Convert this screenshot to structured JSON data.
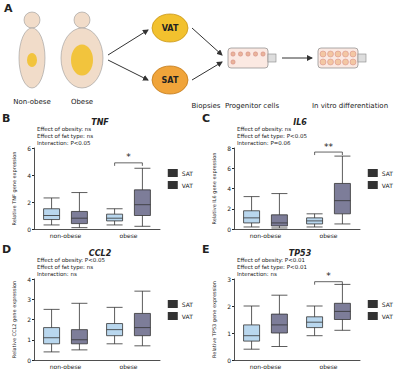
{
  "diagram": {
    "panel": "A",
    "bodies": [
      "Non-obese",
      "Obese"
    ],
    "depots": [
      "VAT",
      "SAT"
    ],
    "steps": [
      "Biopsies",
      "Progenitor cells",
      "In vitro differentiation"
    ]
  },
  "chart_data": [
    {
      "panel": "B",
      "type": "boxplot",
      "title": "TNF",
      "y_label": "Relative TNF gene expression",
      "annotations": [
        "Effect of obesity: ns",
        "Effect of fat type: ns",
        "Interaction: P<0.05"
      ],
      "categories": [
        "non-obese",
        "obese"
      ],
      "series": [
        {
          "name": "SAT",
          "color": "#b9d7ee",
          "values": [
            [
              0.3,
              0.7,
              1.0,
              1.5,
              2.3
            ],
            [
              0.3,
              0.6,
              0.8,
              1.1,
              1.5
            ]
          ]
        },
        {
          "name": "VAT",
          "color": "#7d7d99",
          "values": [
            [
              0.1,
              0.4,
              0.8,
              1.3,
              2.7
            ],
            [
              0.2,
              1.0,
              1.8,
              2.9,
              4.5
            ]
          ]
        }
      ],
      "significance": [
        {
          "category": "obese",
          "y": 4.9,
          "label": "*"
        }
      ],
      "ylim": [
        0,
        6
      ],
      "yticks": [
        0,
        2,
        4,
        6
      ],
      "grid": false,
      "legend": "right"
    },
    {
      "panel": "C",
      "type": "boxplot",
      "title": "IL6",
      "y_label": "Relative IL6 gene expression",
      "annotations": [
        "Effect of obesity: ns",
        "Effect of fat type: P<0.05",
        "Interaction: P=0.06"
      ],
      "categories": [
        "non-obese",
        "obese"
      ],
      "series": [
        {
          "name": "SAT",
          "color": "#b9d7ee",
          "values": [
            [
              0.2,
              0.6,
              1.1,
              1.8,
              3.2
            ],
            [
              0.2,
              0.5,
              0.8,
              1.1,
              1.5
            ]
          ]
        },
        {
          "name": "VAT",
          "color": "#7d7d99",
          "values": [
            [
              0.1,
              0.3,
              0.6,
              1.4,
              3.5
            ],
            [
              0.5,
              1.5,
              2.8,
              4.5,
              7.2
            ]
          ]
        }
      ],
      "significance": [
        {
          "category": "obese",
          "y": 7.6,
          "label": "**"
        }
      ],
      "ylim": [
        0,
        8
      ],
      "yticks": [
        0,
        2,
        4,
        6,
        8
      ],
      "grid": false,
      "legend": "right"
    },
    {
      "panel": "D",
      "type": "boxplot",
      "title": "CCL2",
      "y_label": "Relative CCL2 gene expression",
      "annotations": [
        "Effect of obesity: P<0.05",
        "Effect of fat type: ns",
        "Interaction: ns"
      ],
      "categories": [
        "non-obese",
        "obese"
      ],
      "series": [
        {
          "name": "SAT",
          "color": "#b9d7ee",
          "values": [
            [
              0.4,
              0.8,
              1.1,
              1.6,
              2.5
            ],
            [
              0.8,
              1.2,
              1.5,
              1.8,
              2.6
            ]
          ]
        },
        {
          "name": "VAT",
          "color": "#7d7d99",
          "values": [
            [
              0.5,
              0.8,
              1.0,
              1.5,
              2.8
            ],
            [
              0.7,
              1.2,
              1.6,
              2.3,
              3.4
            ]
          ]
        }
      ],
      "significance": [],
      "ylim": [
        0,
        4
      ],
      "yticks": [
        0,
        1,
        2,
        3,
        4
      ],
      "grid": false,
      "legend": "right"
    },
    {
      "panel": "E",
      "type": "boxplot",
      "title": "TP53",
      "y_label": "Relative TP53 gene expression",
      "annotations": [
        "Effect of obesity: P<0.01",
        "Effect of fat type: P<0.01",
        "Interaction: ns"
      ],
      "categories": [
        "non-obese",
        "obese"
      ],
      "series": [
        {
          "name": "SAT",
          "color": "#b9d7ee",
          "values": [
            [
              0.4,
              0.7,
              0.9,
              1.3,
              2.0
            ],
            [
              0.9,
              1.2,
              1.4,
              1.6,
              2.0
            ]
          ]
        },
        {
          "name": "VAT",
          "color": "#7d7d99",
          "values": [
            [
              0.5,
              1.0,
              1.3,
              1.7,
              2.4
            ],
            [
              1.1,
              1.5,
              1.8,
              2.1,
              2.8
            ]
          ]
        }
      ],
      "significance": [
        {
          "category": "obese",
          "y": 2.9,
          "label": "*"
        }
      ],
      "ylim": [
        0,
        3
      ],
      "yticks": [
        0,
        1,
        2,
        3
      ],
      "grid": false,
      "legend": "right"
    }
  ]
}
